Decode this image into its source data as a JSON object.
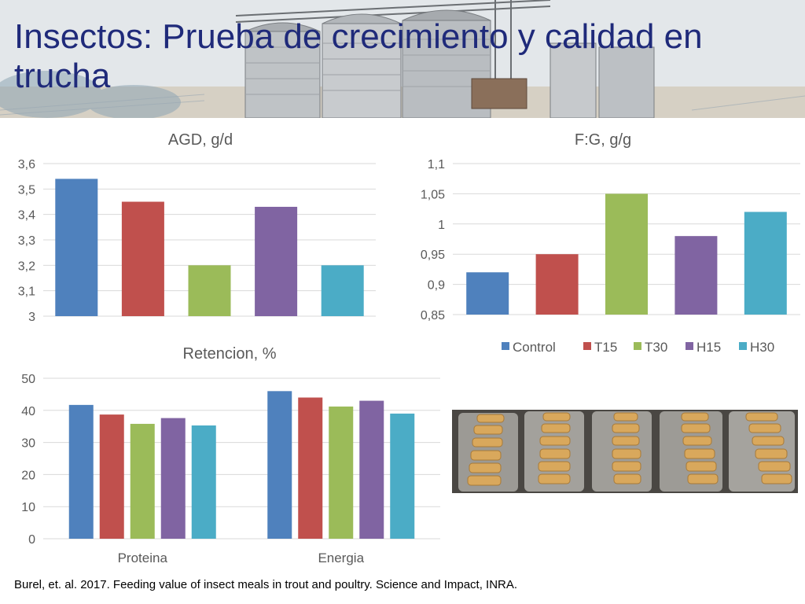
{
  "slide": {
    "title": "Insectos: Prueba de crecimiento y calidad en trucha",
    "citation": "Burel, et. al. 2017. Feeding value of insect meals in trout and poultry. Science and Impact, INRA."
  },
  "colors": {
    "Control": "#4f81bd",
    "T15": "#c0504d",
    "T30": "#9bbb59",
    "H15": "#8064a2",
    "H30": "#4bacc6"
  },
  "chart_data": [
    {
      "type": "bar",
      "title": "AGD, g/d",
      "categories": [
        "Control",
        "T15",
        "T30",
        "H15",
        "H30"
      ],
      "values": [
        3.54,
        3.45,
        3.2,
        3.43,
        3.2
      ],
      "ylim": [
        3,
        3.6
      ],
      "yticks": [
        "3",
        "3,1",
        "3,2",
        "3,3",
        "3,4",
        "3,5",
        "3,6"
      ],
      "grid": true,
      "legend": "none"
    },
    {
      "type": "bar",
      "title": "F:G, g/g",
      "categories": [
        "Control",
        "T15",
        "T30",
        "H15",
        "H30"
      ],
      "values": [
        0.92,
        0.95,
        1.05,
        0.98,
        1.02
      ],
      "ylim": [
        0.85,
        1.1
      ],
      "yticks": [
        "0,85",
        "0,9",
        "0,95",
        "1",
        "1,05",
        "1,1"
      ],
      "grid": true,
      "legend": "bottom",
      "legend_entries": [
        "Control",
        "T15",
        "T30",
        "H15",
        "H30"
      ]
    },
    {
      "type": "bar",
      "title": "Retencion, %",
      "categories": [
        "Proteina",
        "Energia"
      ],
      "series": [
        {
          "name": "Control",
          "values": [
            41.7,
            46.0
          ]
        },
        {
          "name": "T15",
          "values": [
            38.7,
            44.0
          ]
        },
        {
          "name": "T30",
          "values": [
            35.8,
            41.2
          ]
        },
        {
          "name": "H15",
          "values": [
            37.6,
            43.0
          ]
        },
        {
          "name": "H30",
          "values": [
            35.3,
            39.0
          ]
        }
      ],
      "ylim": [
        0,
        50
      ],
      "yticks": [
        "0",
        "10",
        "20",
        "30",
        "40",
        "50"
      ],
      "grid": true,
      "legend": "none"
    }
  ],
  "photo": {
    "subject": "trout fillets on metal trays"
  }
}
